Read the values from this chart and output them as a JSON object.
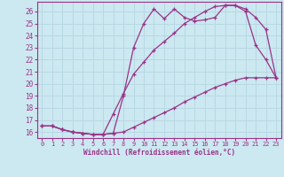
{
  "xlabel": "Windchill (Refroidissement éolien,°C)",
  "bg_color": "#cce8f0",
  "grid_color": "#aaccdd",
  "line_color": "#993388",
  "xlim": [
    -0.5,
    23.5
  ],
  "ylim": [
    15.5,
    26.8
  ],
  "xticks": [
    0,
    1,
    2,
    3,
    4,
    5,
    6,
    7,
    8,
    9,
    10,
    11,
    12,
    13,
    14,
    15,
    16,
    17,
    18,
    19,
    20,
    21,
    22,
    23
  ],
  "yticks": [
    16,
    17,
    18,
    19,
    20,
    21,
    22,
    23,
    24,
    25,
    26
  ],
  "line1_x": [
    0,
    1,
    2,
    3,
    4,
    5,
    6,
    7,
    8,
    9,
    10,
    11,
    12,
    13,
    14,
    15,
    16,
    17,
    18,
    19,
    20,
    21,
    22,
    23
  ],
  "line1_y": [
    16.5,
    16.5,
    16.2,
    16.0,
    15.9,
    15.8,
    15.8,
    15.9,
    19.0,
    23.0,
    25.0,
    26.2,
    25.4,
    26.2,
    25.5,
    25.2,
    25.3,
    25.5,
    26.5,
    26.5,
    26.0,
    23.2,
    22.0,
    20.5
  ],
  "line2_x": [
    0,
    1,
    2,
    3,
    4,
    5,
    6,
    7,
    8,
    9,
    10,
    11,
    12,
    13,
    14,
    15,
    16,
    17,
    18,
    19,
    20,
    21,
    22,
    23
  ],
  "line2_y": [
    16.5,
    16.5,
    16.2,
    16.0,
    15.9,
    15.8,
    15.8,
    17.5,
    19.2,
    20.8,
    21.8,
    22.8,
    23.5,
    24.2,
    25.0,
    25.5,
    26.0,
    26.4,
    26.5,
    26.5,
    26.2,
    25.5,
    24.5,
    20.5
  ],
  "line3_x": [
    0,
    1,
    2,
    3,
    4,
    5,
    6,
    7,
    8,
    9,
    10,
    11,
    12,
    13,
    14,
    15,
    16,
    17,
    18,
    19,
    20,
    21,
    22,
    23
  ],
  "line3_y": [
    16.5,
    16.5,
    16.2,
    16.0,
    15.9,
    15.8,
    15.8,
    15.9,
    16.0,
    16.4,
    16.8,
    17.2,
    17.6,
    18.0,
    18.5,
    18.9,
    19.3,
    19.7,
    20.0,
    20.3,
    20.5,
    20.5,
    20.5,
    20.5
  ]
}
